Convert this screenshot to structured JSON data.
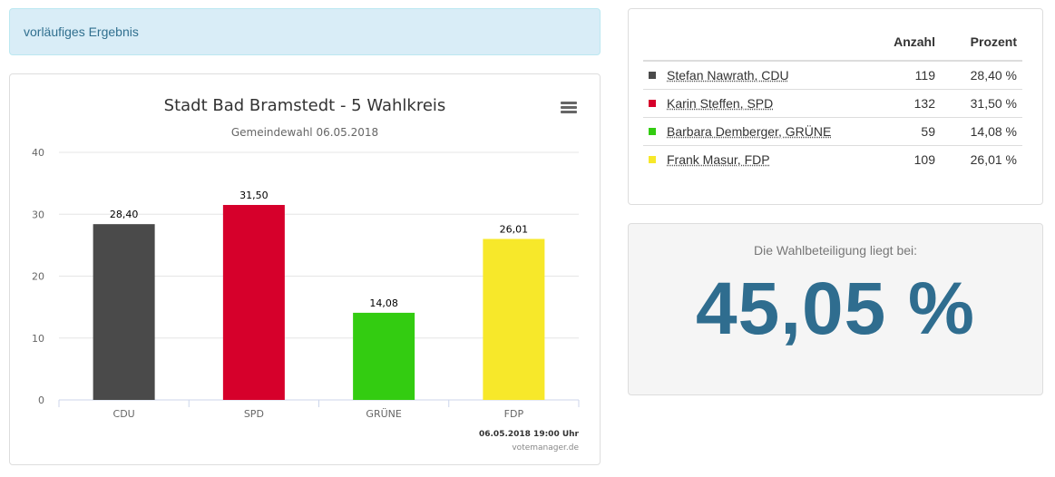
{
  "status_text": "vorläufiges Ergebnis",
  "chart_data": {
    "type": "bar",
    "title": "Stadt Bad Bramstedt - 5 Wahlkreis",
    "subtitle": "Gemeindewahl 06.05.2018",
    "categories": [
      "CDU",
      "SPD",
      "GRÜNE",
      "FDP"
    ],
    "values": [
      28.4,
      31.5,
      14.08,
      26.01
    ],
    "data_labels": [
      "28,40",
      "31,50",
      "14,08",
      "26,01"
    ],
    "colors": [
      "#4a4a4a",
      "#d6002b",
      "#33cc11",
      "#f7e82a"
    ],
    "ylim": [
      0,
      40
    ],
    "yticks": [
      0,
      10,
      20,
      30,
      40
    ],
    "grid": true,
    "timestamp": "06.05.2018 19:00 Uhr",
    "credit": "votemanager.de"
  },
  "results_table": {
    "headers": {
      "count": "Anzahl",
      "percent": "Prozent"
    },
    "rows": [
      {
        "name": "Stefan Nawrath, CDU",
        "count": "119",
        "percent": "28,40 %",
        "color": "#4a4a4a"
      },
      {
        "name": "Karin Steffen, SPD",
        "count": "132",
        "percent": "31,50 %",
        "color": "#d6002b"
      },
      {
        "name": "Barbara Demberger, GRÜNE",
        "count": "59",
        "percent": "14,08 %",
        "color": "#33cc11"
      },
      {
        "name": "Frank Masur, FDP",
        "count": "109",
        "percent": "26,01 %",
        "color": "#f7e82a"
      }
    ]
  },
  "turnout": {
    "label": "Die Wahlbeteiligung liegt bei:",
    "value": "45,05 %"
  }
}
